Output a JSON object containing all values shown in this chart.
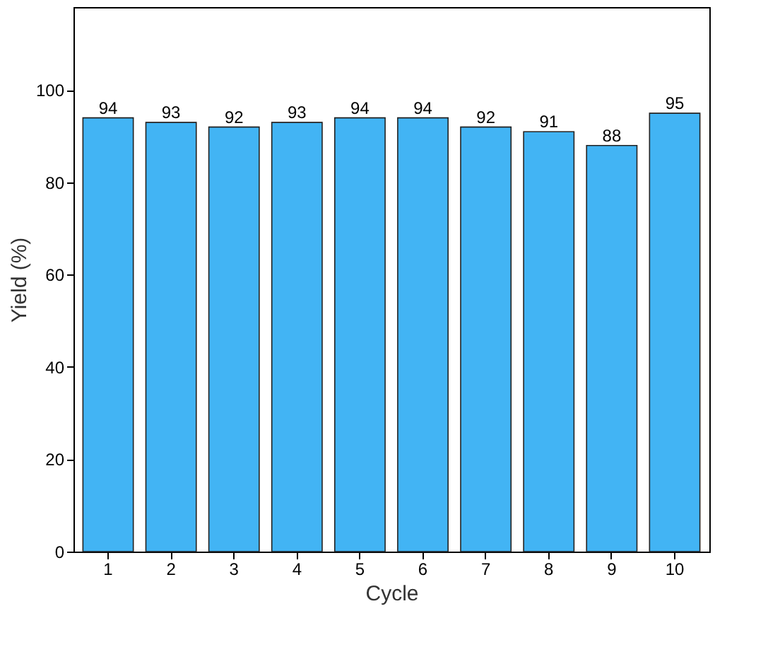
{
  "chart_data": {
    "type": "bar",
    "xlabel": "Cycle",
    "ylabel": "Yield (%)",
    "categories": [
      "1",
      "2",
      "3",
      "4",
      "5",
      "6",
      "7",
      "8",
      "9",
      "10"
    ],
    "values": [
      94,
      93,
      92,
      93,
      94,
      94,
      92,
      91,
      88,
      95
    ],
    "color": "#42b4f4",
    "ylim": [
      0,
      118
    ],
    "yticks": [
      0,
      20,
      40,
      60,
      80,
      100
    ],
    "data_labels": true
  }
}
